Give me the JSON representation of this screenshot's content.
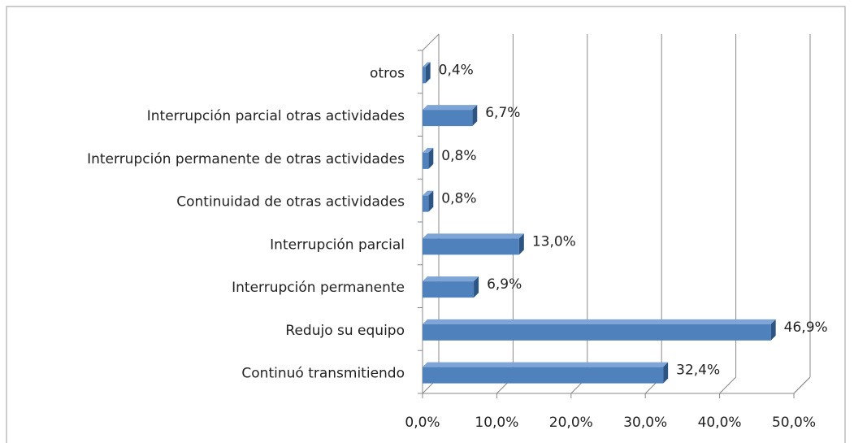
{
  "chart_data": {
    "type": "bar3d_horizontal",
    "categories": [
      "otros",
      "Interrupción parcial otras actividades",
      "Interrupción permanente de otras actividades",
      "Continuidad de otras actividades",
      "Interrupción parcial",
      "Interrupción permanente",
      "Redujo su equipo",
      "Continuó transmitiendo"
    ],
    "values": [
      0.4,
      6.7,
      0.8,
      0.8,
      13.0,
      6.9,
      46.9,
      32.4
    ],
    "value_labels": [
      "0,4%",
      "6,7%",
      "0,8%",
      "0,8%",
      "13,0%",
      "6,9%",
      "46,9%",
      "32,4%"
    ],
    "color": "#4f81bd",
    "xlim": [
      0,
      50
    ],
    "xticks": [
      {
        "value": 0,
        "label": "0,0%"
      },
      {
        "value": 10,
        "label": "10,0%"
      },
      {
        "value": 20,
        "label": "20,0%"
      },
      {
        "value": 30,
        "label": "30,0%"
      },
      {
        "value": 40,
        "label": "40,0%"
      },
      {
        "value": 50,
        "label": "50,0%"
      }
    ],
    "grid": true
  }
}
